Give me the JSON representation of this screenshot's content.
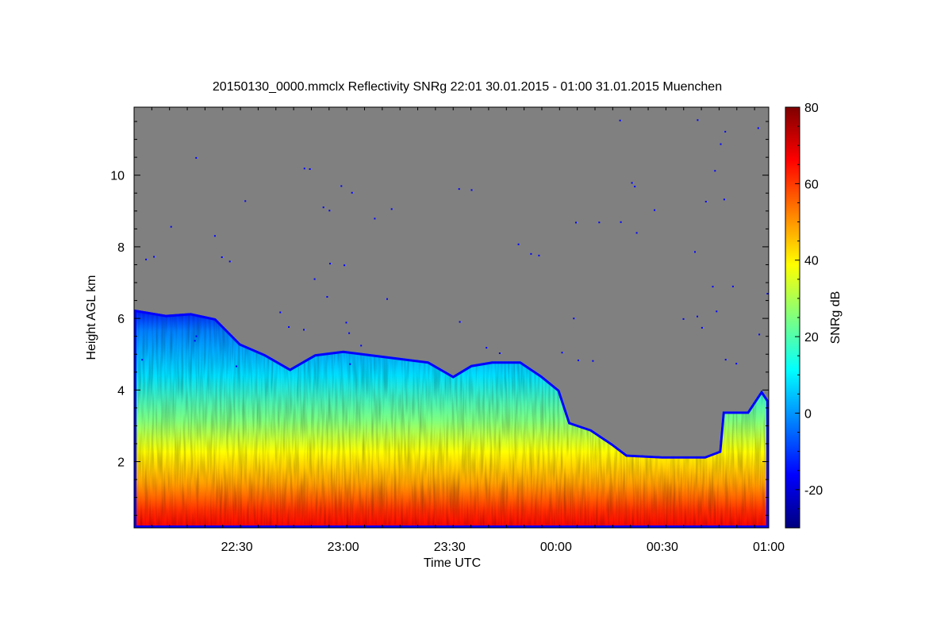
{
  "chart_data": {
    "type": "heatmap",
    "title": "20150130_0000.mmclx Reflectivity SNRg   22:01 30.01.2015 - 01:00 31.01.2015 Muenchen",
    "xlabel": "Time UTC",
    "ylabel": "Height AGL km",
    "colorbar_label": "SNRg dB",
    "x_range_minutes": [
      1321,
      1500
    ],
    "x_ticks": [
      {
        "label": "22:30",
        "minutes": 1350
      },
      {
        "label": "23:00",
        "minutes": 1380
      },
      {
        "label": "23:30",
        "minutes": 1410
      },
      {
        "label": "00:00",
        "minutes": 1440
      },
      {
        "label": "00:30",
        "minutes": 1470
      },
      {
        "label": "01:00",
        "minutes": 1500
      }
    ],
    "y_range_km": [
      0.15,
      11.9
    ],
    "y_ticks": [
      2,
      4,
      6,
      8,
      10
    ],
    "colorbar_range_db": [
      -30,
      80
    ],
    "colorbar_ticks": [
      -20,
      0,
      20,
      40,
      60,
      80
    ],
    "background_color": "#808080",
    "colormap": [
      "#00007f",
      "#0000ff",
      "#007fff",
      "#00ffff",
      "#7fff7f",
      "#ffff00",
      "#ff7f00",
      "#ff0000",
      "#7f0000"
    ],
    "cloud_top_profile_km": [
      {
        "minutes": 1321,
        "top": 6.25
      },
      {
        "minutes": 1330,
        "top": 6.1
      },
      {
        "minutes": 1337,
        "top": 6.15
      },
      {
        "minutes": 1344,
        "top": 6.0
      },
      {
        "minutes": 1351,
        "top": 5.3
      },
      {
        "minutes": 1358,
        "top": 5.0
      },
      {
        "minutes": 1365,
        "top": 4.6
      },
      {
        "minutes": 1372,
        "top": 5.0
      },
      {
        "minutes": 1380,
        "top": 5.1
      },
      {
        "minutes": 1388,
        "top": 5.0
      },
      {
        "minutes": 1396,
        "top": 4.9
      },
      {
        "minutes": 1404,
        "top": 4.8
      },
      {
        "minutes": 1411,
        "top": 4.4
      },
      {
        "minutes": 1416,
        "top": 4.7
      },
      {
        "minutes": 1422,
        "top": 4.8
      },
      {
        "minutes": 1430,
        "top": 4.8
      },
      {
        "minutes": 1436,
        "top": 4.4
      },
      {
        "minutes": 1441,
        "top": 4.0
      },
      {
        "minutes": 1444,
        "top": 3.1
      },
      {
        "minutes": 1450,
        "top": 2.9
      },
      {
        "minutes": 1456,
        "top": 2.5
      },
      {
        "minutes": 1460,
        "top": 2.2
      },
      {
        "minutes": 1470,
        "top": 2.15
      },
      {
        "minutes": 1477,
        "top": 2.15
      },
      {
        "minutes": 1482,
        "top": 2.15
      },
      {
        "minutes": 1486,
        "top": 2.3
      },
      {
        "minutes": 1487,
        "top": 3.4
      },
      {
        "minutes": 1494,
        "top": 3.4
      },
      {
        "minutes": 1498,
        "top": 4.0
      },
      {
        "minutes": 1500,
        "top": 3.7
      }
    ]
  }
}
